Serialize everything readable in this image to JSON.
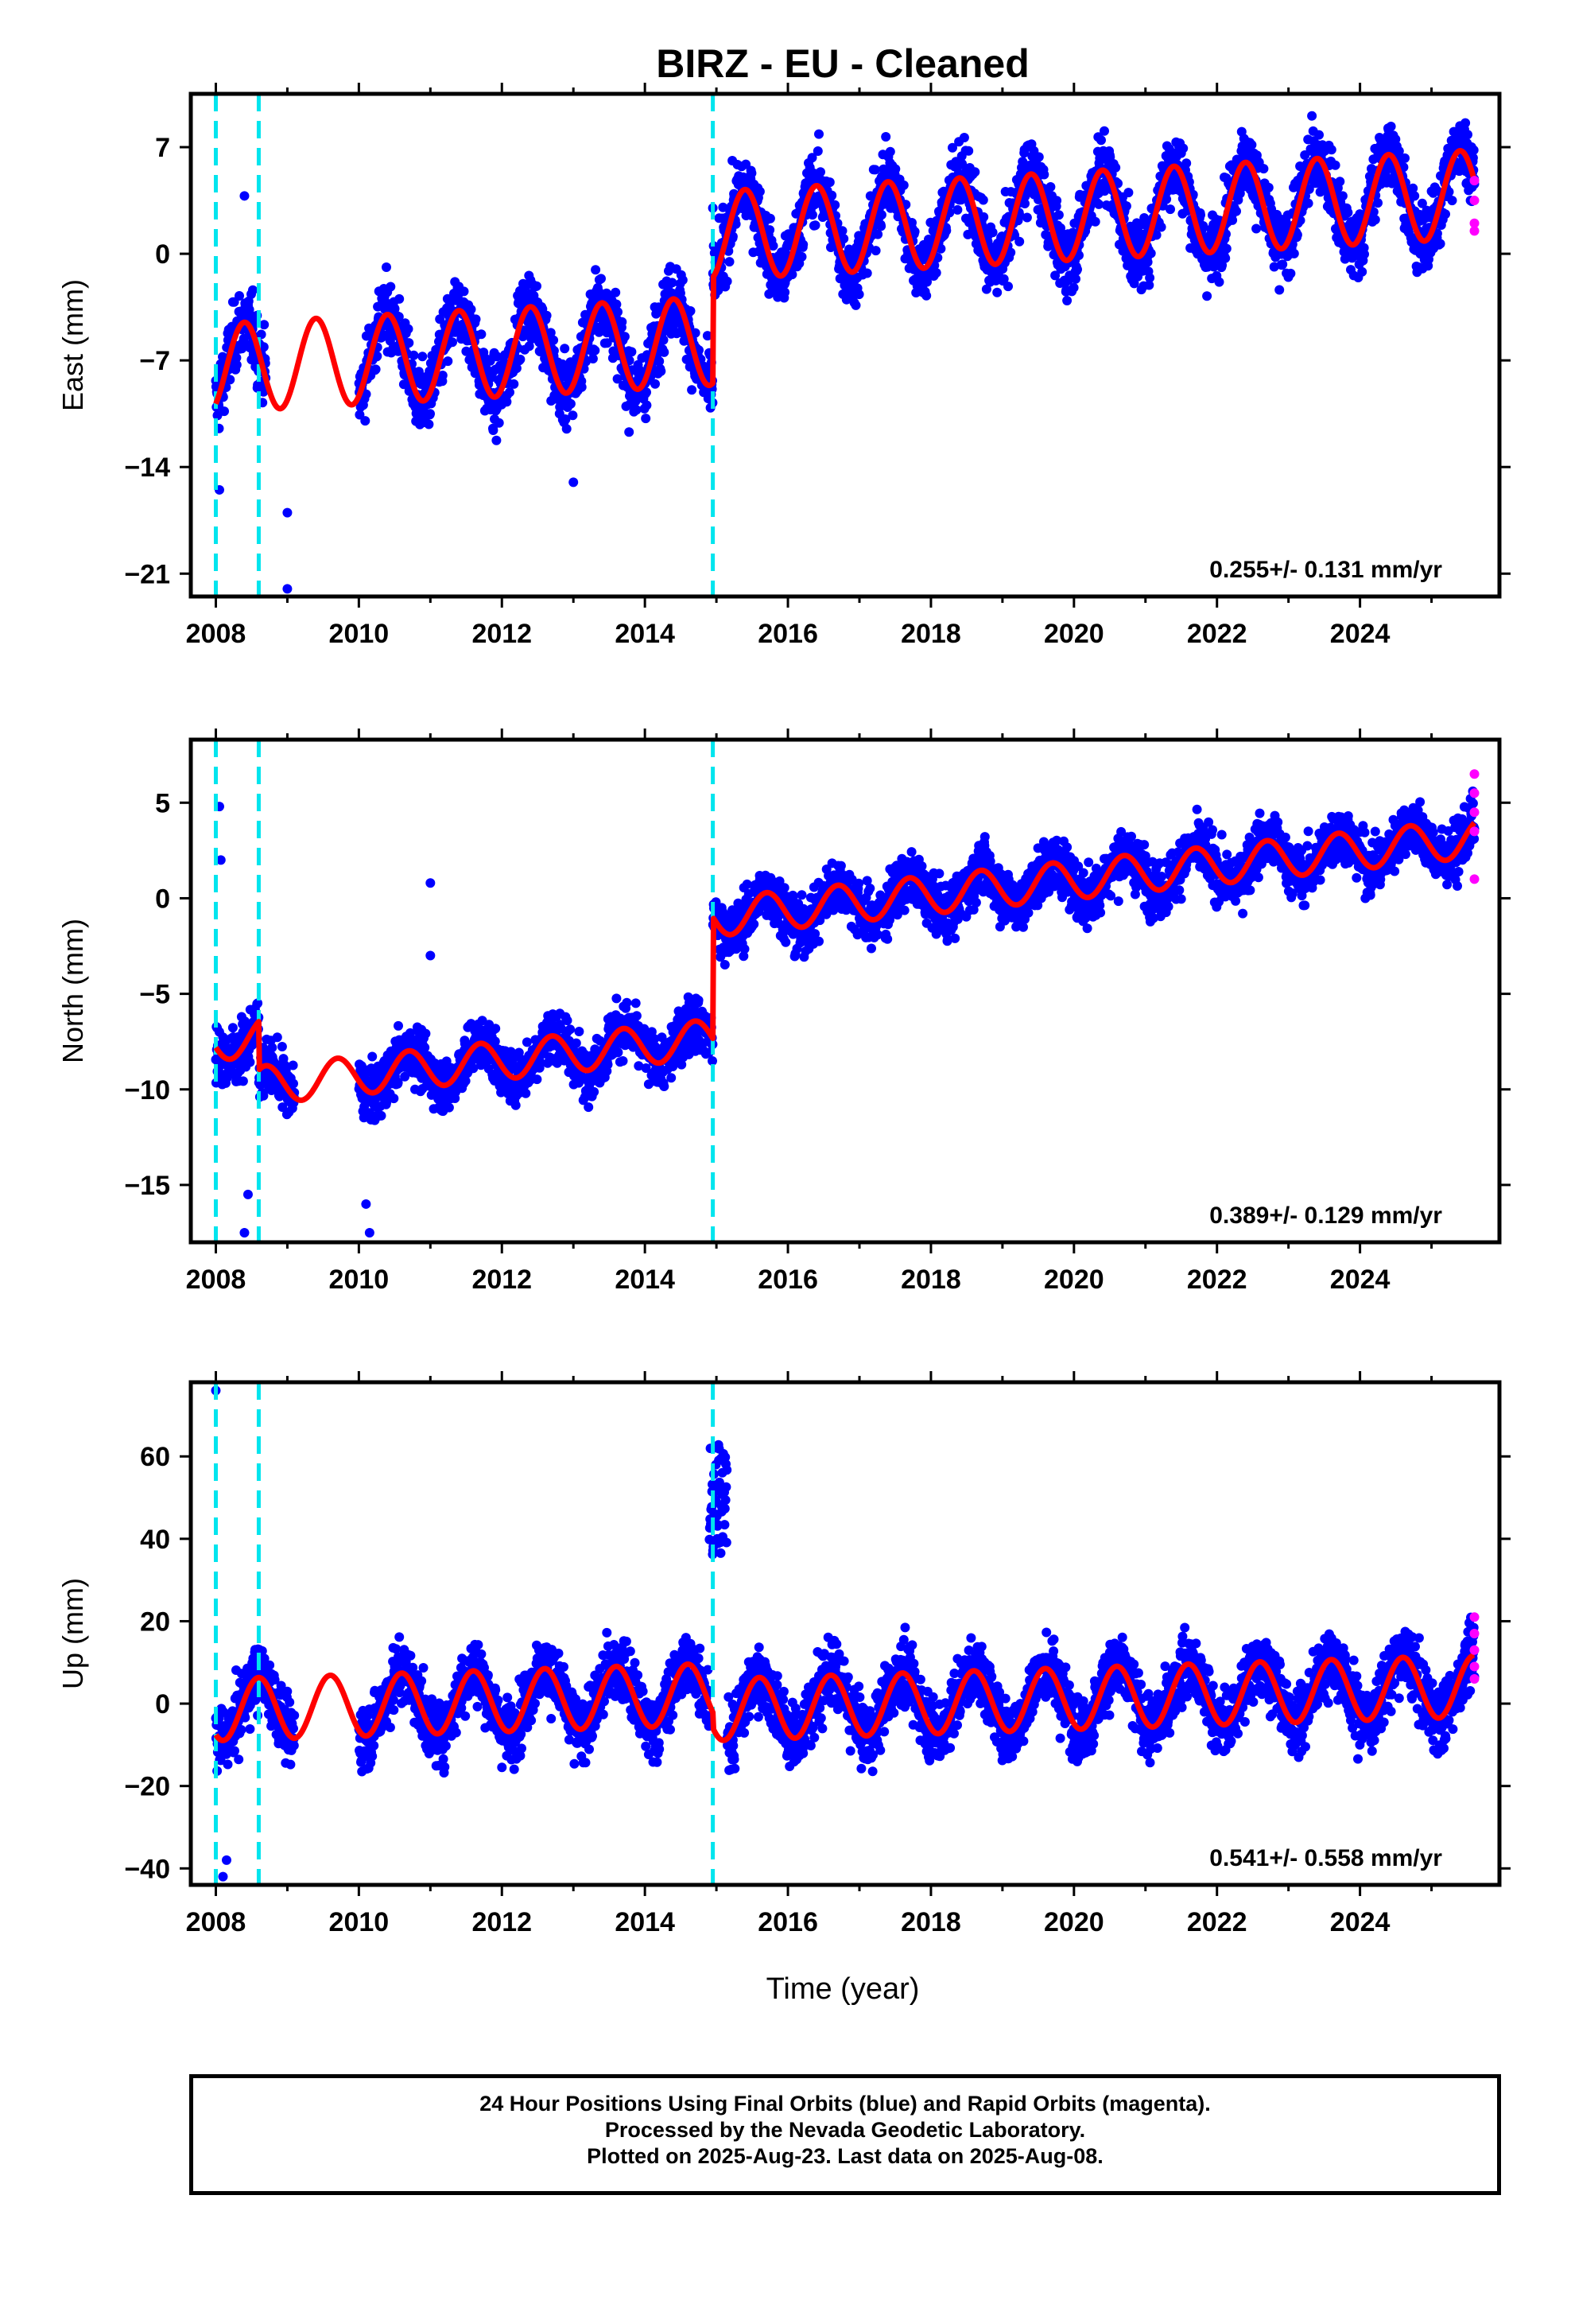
{
  "title": "BIRZ  - EU - Cleaned",
  "xlabel": "Time (year)",
  "footer": {
    "line1": "24 Hour Positions Using Final Orbits (blue) and Rapid Orbits (magenta).",
    "line2": "Processed by the Nevada Geodetic Laboratory.",
    "line3": "Plotted on 2025-Aug-23. Last data on 2025-Aug-08."
  },
  "colors": {
    "final_orbits": "#0000ff",
    "rapid_orbits": "#ff00ff",
    "model": "#ff0000",
    "offsets": "#00e5ee",
    "frame": "#000000"
  },
  "chart_data": [
    {
      "type": "scatter",
      "ylabel": "East (mm)",
      "rate_label": "0.255+/- 0.131 mm/yr",
      "xlim": [
        2007.65,
        2025.95
      ],
      "ylim": [
        -22.5,
        10.5
      ],
      "xticks": [
        2008,
        2010,
        2012,
        2014,
        2016,
        2018,
        2020,
        2022,
        2024
      ],
      "yticks": [
        7,
        0,
        -7,
        -14,
        -21
      ],
      "ytick_labels": [
        "7",
        "0",
        "−7",
        "−14",
        "−21"
      ],
      "offsets": [
        2008.0,
        2008.6,
        2014.95
      ],
      "trend": [
        {
          "from": 2008.0,
          "to": 2014.95,
          "start": -7.5,
          "rate": 0.255
        },
        {
          "from": 2014.95,
          "to": 2025.6,
          "start": 1.2,
          "rate": 0.255
        }
      ],
      "seasonal": {
        "amplitude": 2.9,
        "peak_phase": 0.4
      },
      "data_gap": [
        2008.7,
        2010.0
      ],
      "scatter_sd": 1.6,
      "last_data": 2025.6,
      "outliers": [
        {
          "x": 2008.4,
          "y": 3.8
        },
        {
          "x": 2009.0,
          "y": -17.0
        },
        {
          "x": 2009.0,
          "y": -22.0
        },
        {
          "x": 2013.0,
          "y": -15.0
        },
        {
          "x": 2014.95,
          "y": 3.0
        },
        {
          "x": 2008.05,
          "y": -15.5
        }
      ],
      "rapid": [
        {
          "x": 2025.6,
          "y": 4.8
        },
        {
          "x": 2025.6,
          "y": 3.5
        },
        {
          "x": 2025.6,
          "y": 2.0
        },
        {
          "x": 2025.6,
          "y": 1.5
        }
      ]
    },
    {
      "type": "scatter",
      "ylabel": "North (mm)",
      "rate_label": "0.389+/- 0.129 mm/yr",
      "xlim": [
        2007.65,
        2025.95
      ],
      "ylim": [
        -18.0,
        8.3
      ],
      "xticks": [
        2008,
        2010,
        2012,
        2014,
        2016,
        2018,
        2020,
        2022,
        2024
      ],
      "yticks": [
        5,
        0,
        -5,
        -10,
        -15
      ],
      "ytick_labels": [
        "5",
        "0",
        "−5",
        "−10",
        "−15"
      ],
      "offsets": [
        2008.0,
        2008.6,
        2014.95
      ],
      "trend": [
        {
          "from": 2008.0,
          "to": 2008.6,
          "start": -7.5,
          "rate": 0.389
        },
        {
          "from": 2008.6,
          "to": 2014.95,
          "start": -9.8,
          "rate": 0.389
        },
        {
          "from": 2014.95,
          "to": 2025.6,
          "start": -1.0,
          "rate": 0.389
        }
      ],
      "seasonal": {
        "amplitude": 1.0,
        "peak_phase": 0.7
      },
      "data_gap": [
        2009.1,
        2010.0
      ],
      "scatter_sd": 1.0,
      "last_data": 2025.6,
      "outliers": [
        {
          "x": 2008.05,
          "y": 4.8
        },
        {
          "x": 2008.07,
          "y": 2.0
        },
        {
          "x": 2011.0,
          "y": 0.8
        },
        {
          "x": 2011.0,
          "y": -3.0
        },
        {
          "x": 2010.1,
          "y": -16.0
        },
        {
          "x": 2010.15,
          "y": -17.5
        },
        {
          "x": 2008.4,
          "y": -17.5
        },
        {
          "x": 2008.45,
          "y": -15.5
        }
      ],
      "rapid": [
        {
          "x": 2025.6,
          "y": 6.5
        },
        {
          "x": 2025.6,
          "y": 5.5
        },
        {
          "x": 2025.6,
          "y": 4.5
        },
        {
          "x": 2025.6,
          "y": 3.5
        },
        {
          "x": 2025.6,
          "y": 1.0
        }
      ]
    },
    {
      "type": "scatter",
      "ylabel": "Up (mm)",
      "rate_label": "0.541+/- 0.558 mm/yr",
      "xlim": [
        2007.65,
        2025.95
      ],
      "ylim": [
        -44,
        78
      ],
      "xticks": [
        2008,
        2010,
        2012,
        2014,
        2016,
        2018,
        2020,
        2022,
        2024
      ],
      "yticks": [
        60,
        40,
        20,
        0,
        -20,
        -40
      ],
      "ytick_labels": [
        "60",
        "40",
        "20",
        "0",
        "−20",
        "−40"
      ],
      "offsets": [
        2008.0,
        2008.6,
        2014.95
      ],
      "trend": [
        {
          "from": 2008.0,
          "to": 2014.95,
          "start": -1.5,
          "rate": 0.541
        },
        {
          "from": 2014.95,
          "to": 2025.6,
          "start": -1.5,
          "rate": 0.541
        }
      ],
      "seasonal": {
        "amplitude": 7.5,
        "peak_phase": 0.6
      },
      "data_gap": [
        2009.1,
        2010.0
      ],
      "scatter_sd": 5.5,
      "last_data": 2025.6,
      "spike": {
        "from": 2014.9,
        "to": 2015.15,
        "y_min": 35,
        "y_max": 63
      },
      "outliers": [
        {
          "x": 2008.0,
          "y": 76
        },
        {
          "x": 2008.1,
          "y": -42
        },
        {
          "x": 2008.15,
          "y": -38
        }
      ],
      "rapid": [
        {
          "x": 2025.6,
          "y": 21
        },
        {
          "x": 2025.6,
          "y": 17
        },
        {
          "x": 2025.6,
          "y": 13
        },
        {
          "x": 2025.6,
          "y": 9
        },
        {
          "x": 2025.6,
          "y": 6
        }
      ]
    }
  ]
}
